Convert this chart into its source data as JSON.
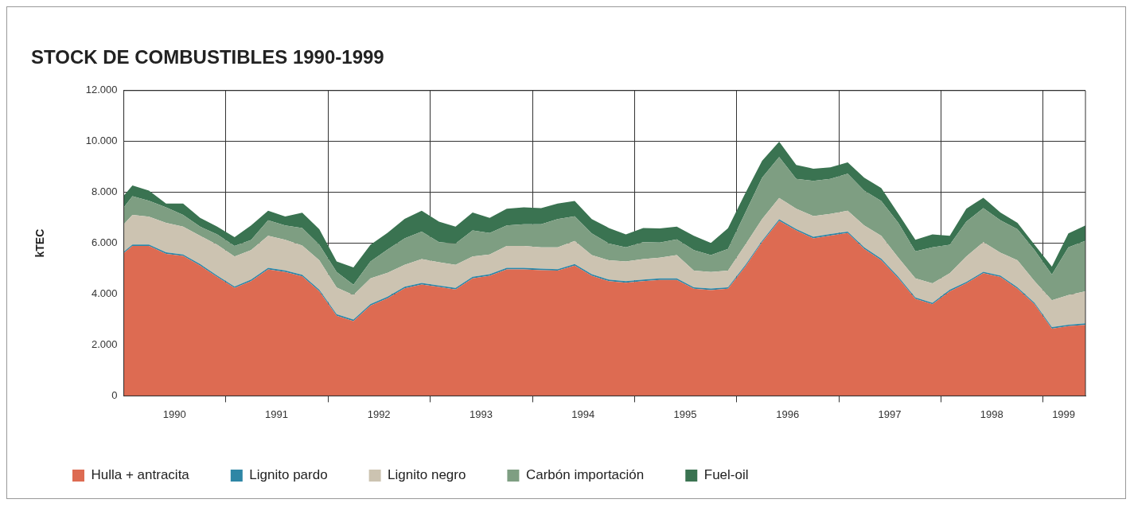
{
  "chart_data": {
    "type": "area",
    "stacked": true,
    "title": "STOCK DE COMBUSTIBLES 1990-1999",
    "ylabel": "kTEC",
    "x": [
      "1990-01",
      "1990-02",
      "1990-04",
      "1990-06",
      "1990-08",
      "1990-10",
      "1990-12",
      "1991-02",
      "1991-04",
      "1991-06",
      "1991-08",
      "1991-10",
      "1991-12",
      "1992-02",
      "1992-04",
      "1992-06",
      "1992-08",
      "1992-10",
      "1992-12",
      "1993-02",
      "1993-04",
      "1993-06",
      "1993-08",
      "1993-10",
      "1993-12",
      "1994-02",
      "1994-04",
      "1994-06",
      "1994-08",
      "1994-10",
      "1994-12",
      "1995-02",
      "1995-04",
      "1995-06",
      "1995-08",
      "1995-10",
      "1995-12",
      "1996-02",
      "1996-04",
      "1996-06",
      "1996-08",
      "1996-10",
      "1996-12",
      "1997-02",
      "1997-04",
      "1997-06",
      "1997-08",
      "1997-10",
      "1997-12",
      "1998-02",
      "1998-04",
      "1998-06",
      "1998-08",
      "1998-10",
      "1998-12",
      "1999-02",
      "1999-04",
      "1999-06"
    ],
    "series": [
      {
        "name": "Hulla + antracita",
        "color": "#dd6b52",
        "values": [
          5610,
          5890,
          5890,
          5580,
          5500,
          5120,
          4670,
          4240,
          4510,
          4970,
          4870,
          4700,
          4110,
          3150,
          2940,
          3550,
          3840,
          4230,
          4380,
          4280,
          4180,
          4620,
          4720,
          4970,
          4970,
          4940,
          4920,
          5120,
          4720,
          4510,
          4450,
          4510,
          4560,
          4560,
          4210,
          4160,
          4210,
          5080,
          6040,
          6880,
          6500,
          6190,
          6300,
          6400,
          5780,
          5330,
          4620,
          3810,
          3600,
          4110,
          4420,
          4820,
          4670,
          4210,
          3600,
          2640,
          2740,
          2790
        ]
      },
      {
        "name": "Lignito pardo",
        "color": "#2e86a5",
        "values": [
          60,
          60,
          60,
          60,
          60,
          60,
          60,
          60,
          60,
          60,
          60,
          60,
          60,
          60,
          60,
          60,
          60,
          60,
          60,
          60,
          60,
          60,
          60,
          60,
          60,
          60,
          60,
          60,
          60,
          60,
          60,
          60,
          60,
          60,
          60,
          60,
          60,
          60,
          60,
          60,
          60,
          60,
          60,
          60,
          60,
          60,
          60,
          60,
          60,
          60,
          60,
          60,
          60,
          60,
          60,
          60,
          60,
          60
        ]
      },
      {
        "name": "Lignito negro",
        "color": "#ccc3b1",
        "values": [
          1080,
          1160,
          1090,
          1160,
          1090,
          1110,
          1210,
          1180,
          1160,
          1260,
          1210,
          1150,
          1160,
          1050,
          960,
          1010,
          940,
          860,
          940,
          910,
          910,
          800,
          780,
          860,
          860,
          840,
          860,
          910,
          750,
          760,
          770,
          810,
          810,
          910,
          650,
          650,
          650,
          800,
          850,
          840,
          800,
          820,
          790,
          820,
          860,
          900,
          750,
          750,
          760,
          650,
          1000,
          1160,
          900,
          1060,
          850,
          1060,
          1160,
          1260
        ]
      },
      {
        "name": "Carbón importación",
        "color": "#7e9e82",
        "values": [
          660,
          740,
          630,
          610,
          460,
          360,
          410,
          410,
          400,
          610,
          560,
          690,
          610,
          610,
          410,
          660,
          910,
          1040,
          1080,
          790,
          840,
          1020,
          840,
          810,
          860,
          910,
          1110,
          970,
          860,
          660,
          560,
          660,
          600,
          620,
          810,
          660,
          860,
          1260,
          1630,
          1610,
          1170,
          1380,
          1380,
          1450,
          1370,
          1370,
          1370,
          1060,
          1420,
          1120,
          1370,
          1340,
          1270,
          1220,
          1220,
          1010,
          1880,
          1990
        ]
      },
      {
        "name": "Fuel-oil",
        "color": "#3a7351",
        "values": [
          460,
          420,
          400,
          150,
          450,
          350,
          300,
          350,
          570,
          380,
          350,
          600,
          610,
          410,
          680,
          660,
          660,
          770,
          820,
          810,
          660,
          710,
          600,
          660,
          660,
          630,
          610,
          600,
          560,
          610,
          510,
          560,
          550,
          500,
          560,
          480,
          810,
          770,
          660,
          600,
          550,
          480,
          450,
          450,
          510,
          510,
          360,
          460,
          510,
          350,
          510,
          410,
          310,
          250,
          210,
          310,
          550,
          600
        ]
      }
    ],
    "xlim": [
      "1990-01",
      "1999-06"
    ],
    "xticks": [
      {
        "value": "1990-07",
        "label": "1990"
      },
      {
        "value": "1991-01",
        "label": null
      },
      {
        "value": "1991-07",
        "label": "1991"
      },
      {
        "value": "1992-01",
        "label": null
      },
      {
        "value": "1992-07",
        "label": "1992"
      },
      {
        "value": "1993-01",
        "label": null
      },
      {
        "value": "1993-07",
        "label": "1993"
      },
      {
        "value": "1994-01",
        "label": null
      },
      {
        "value": "1994-07",
        "label": "1994"
      },
      {
        "value": "1995-01",
        "label": null
      },
      {
        "value": "1995-07",
        "label": "1995"
      },
      {
        "value": "1996-01",
        "label": null
      },
      {
        "value": "1996-07",
        "label": "1996"
      },
      {
        "value": "1997-01",
        "label": null
      },
      {
        "value": "1997-07",
        "label": "1997"
      },
      {
        "value": "1998-01",
        "label": null
      },
      {
        "value": "1998-07",
        "label": "1998"
      },
      {
        "value": "1999-01",
        "label": null
      },
      {
        "value": "1999-03-15",
        "label": "1999"
      }
    ],
    "ylim": [
      0,
      12000
    ],
    "yticks": [
      {
        "value": 0,
        "label": "0"
      },
      {
        "value": 2000,
        "label": "2.000"
      },
      {
        "value": 4000,
        "label": "4.000"
      },
      {
        "value": 6000,
        "label": "6.000"
      },
      {
        "value": 8000,
        "label": "8.000"
      },
      {
        "value": 10000,
        "label": "10.000"
      },
      {
        "value": 12000,
        "label": "12.000"
      }
    ],
    "grid": true,
    "legend": "bottom"
  }
}
